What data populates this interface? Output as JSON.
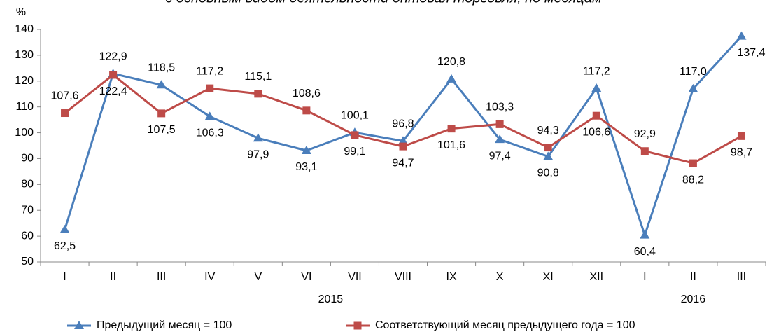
{
  "chart_data": {
    "type": "line",
    "title": "с основным видом деятельности оптовая торговля, по месяцам",
    "y_unit": "%",
    "categories": [
      "I",
      "II",
      "III",
      "IV",
      "V",
      "VI",
      "VII",
      "VIII",
      "IX",
      "X",
      "XI",
      "XII",
      "I",
      "II",
      "III"
    ],
    "x_groups": [
      "2015",
      "2016"
    ],
    "ylim": [
      50,
      140
    ],
    "yticks": [
      50,
      60,
      70,
      80,
      90,
      100,
      110,
      120,
      130,
      140
    ],
    "series": [
      {
        "name": "Предыдущий месяц = 100",
        "color": "#4a7ebb",
        "marker": "triangle",
        "values": [
          62.5,
          122.9,
          118.5,
          106.3,
          97.9,
          93.1,
          100.1,
          96.8,
          120.8,
          97.4,
          90.8,
          117.2,
          60.4,
          117.0,
          137.4
        ],
        "value_labels": [
          "62,5",
          "122,9",
          "118,5",
          "106,3",
          "97,9",
          "93,1",
          "100,1",
          "96,8",
          "120,8",
          "97,4",
          "90,8",
          "117,2",
          "60,4",
          "117,0",
          "137,4"
        ]
      },
      {
        "name": "Соответствующий месяц предыдущего года = 100",
        "color": "#be4b48",
        "marker": "square",
        "values": [
          107.6,
          122.4,
          107.5,
          117.2,
          115.1,
          108.6,
          99.1,
          94.7,
          101.6,
          103.3,
          94.3,
          106.6,
          92.9,
          88.2,
          98.7
        ],
        "value_labels": [
          "107,6",
          "122,4",
          "107,5",
          "117,2",
          "115,1",
          "108,6",
          "99,1",
          "94,7",
          "101,6",
          "103,3",
          "94,3",
          "106,6",
          "92,9",
          "88,2",
          "98,7"
        ]
      }
    ]
  }
}
